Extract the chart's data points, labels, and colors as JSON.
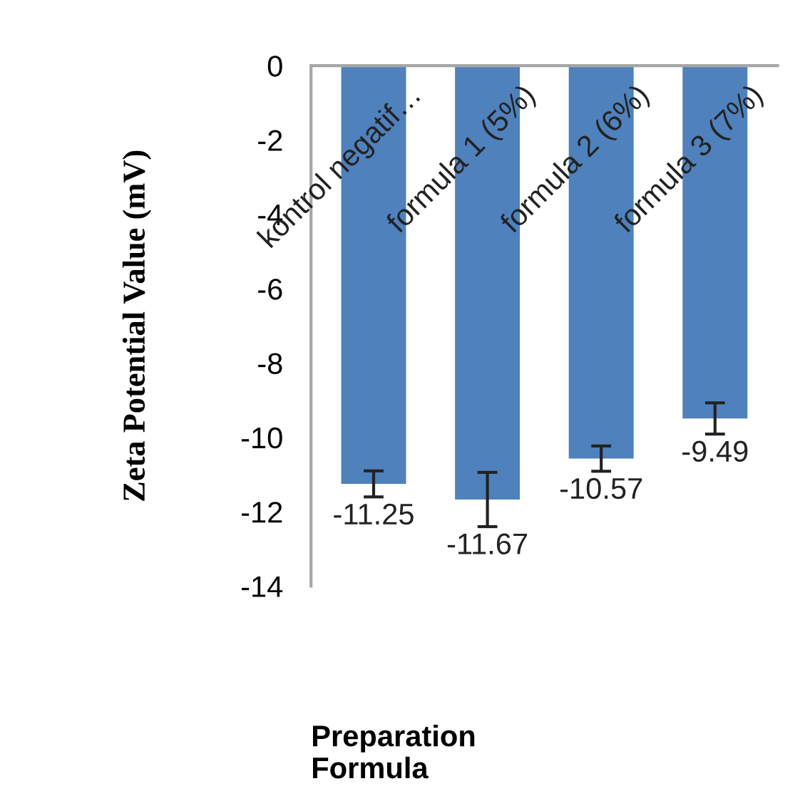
{
  "chart_data": {
    "type": "bar",
    "xlabel": "Preparation\nFormula",
    "ylabel": "Zeta Potential Value (mV)",
    "categories": [
      "kontrol negatif…",
      "formula 1 (5%)",
      "formula 2 (6%)",
      "formula 3 (7%)"
    ],
    "values": [
      -11.25,
      -11.67,
      -10.57,
      -9.49
    ],
    "errors": [
      0.35,
      0.73,
      0.34,
      0.42
    ],
    "color": "#4f81bd",
    "data_labels": true,
    "ylim": [
      -14,
      0
    ],
    "yticks": [
      0,
      -2,
      -4,
      -6,
      -8,
      -10,
      -12,
      -14
    ],
    "grid": false,
    "legend": false
  }
}
